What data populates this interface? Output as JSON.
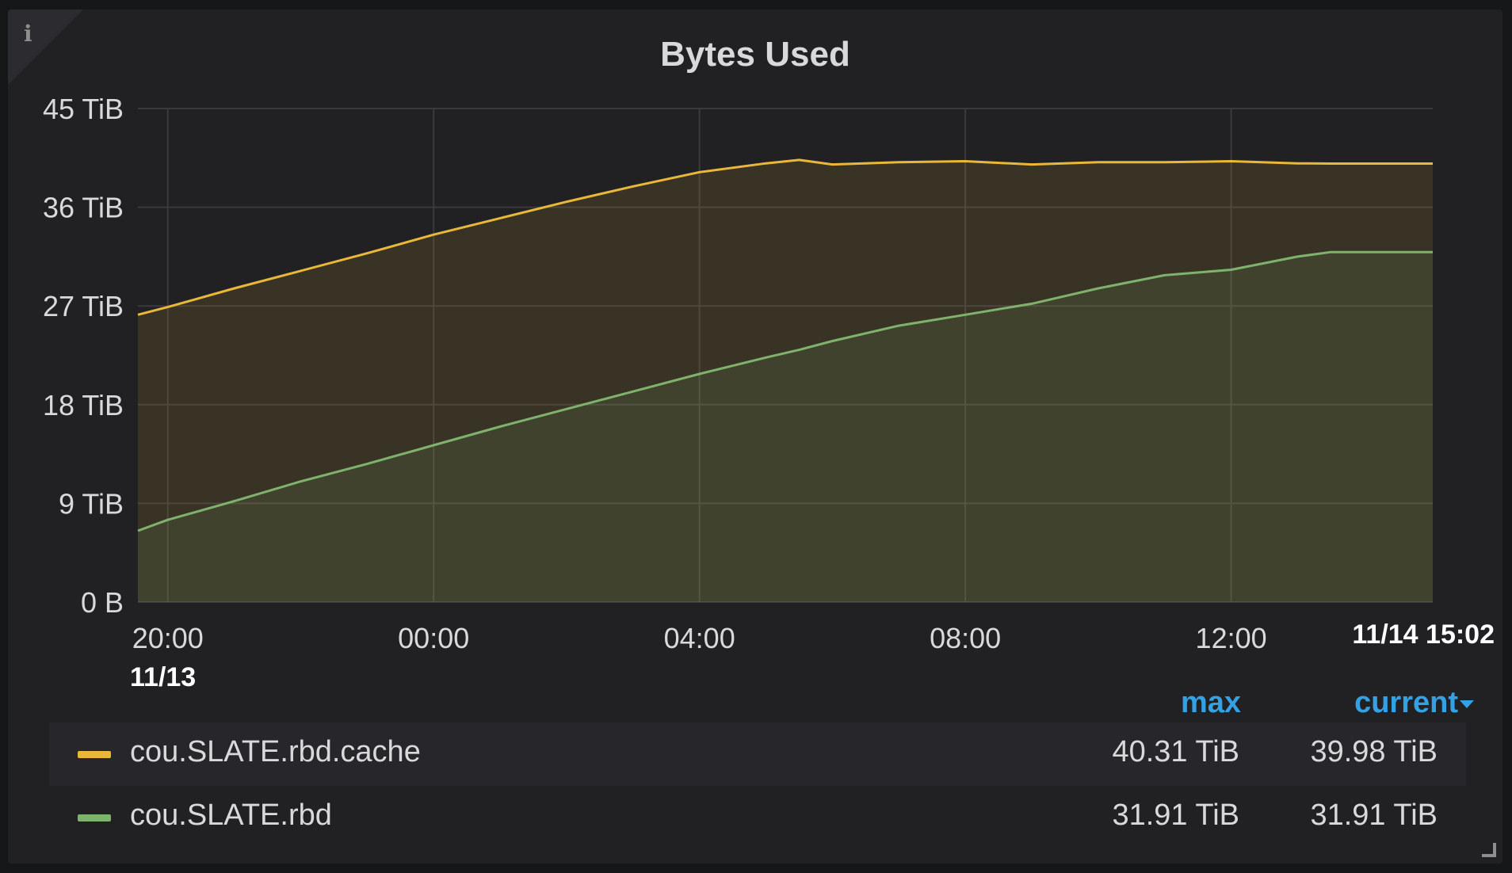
{
  "panel": {
    "title": "Bytes Used",
    "info_icon": "info-icon"
  },
  "chart_data": {
    "type": "area",
    "title": "Bytes Used",
    "ylabel": "",
    "xlabel": "",
    "y_unit": "TiB",
    "ylim": [
      0,
      45
    ],
    "y_ticks": [
      "0 B",
      "9 TiB",
      "18 TiB",
      "27 TiB",
      "36 TiB",
      "45 TiB"
    ],
    "x_ticks": [
      "20:00",
      "00:00",
      "04:00",
      "08:00",
      "12:00"
    ],
    "x_range": [
      "11/13 19:33",
      "11/14 15:02"
    ],
    "x_start_label": "11/13",
    "x_end_label": "11/14 15:02",
    "grid": true,
    "legend_position": "bottom",
    "x": [
      "11/13 19:33",
      "11/13 20:00",
      "11/13 21:00",
      "11/13 22:00",
      "11/13 23:00",
      "11/14 00:00",
      "11/14 01:00",
      "11/14 02:00",
      "11/14 03:00",
      "11/14 04:00",
      "11/14 05:00",
      "11/14 05:30",
      "11/14 06:00",
      "11/14 07:00",
      "11/14 08:00",
      "11/14 09:00",
      "11/14 10:00",
      "11/14 11:00",
      "11/14 12:00",
      "11/14 13:00",
      "11/14 13:30",
      "11/14 15:02"
    ],
    "series": [
      {
        "name": "cou.SLATE.rbd.cache",
        "color": "#eab839",
        "values": [
          26.2,
          26.9,
          28.6,
          30.2,
          31.8,
          33.5,
          35.0,
          36.5,
          37.9,
          39.2,
          40.0,
          40.31,
          39.9,
          40.1,
          40.2,
          39.9,
          40.1,
          40.1,
          40.2,
          40.0,
          39.98,
          39.98
        ]
      },
      {
        "name": "cou.SLATE.rbd",
        "color": "#7eb26d",
        "values": [
          6.5,
          7.5,
          9.2,
          11.0,
          12.6,
          14.3,
          16.0,
          17.6,
          19.2,
          20.8,
          22.3,
          23.0,
          23.8,
          25.2,
          26.2,
          27.2,
          28.6,
          29.8,
          30.3,
          31.5,
          31.91,
          31.91
        ]
      }
    ]
  },
  "legend": {
    "headers": {
      "max": "max",
      "current": "current"
    },
    "sort_icon": "caret-down-icon",
    "rows": [
      {
        "name": "cou.SLATE.rbd.cache",
        "max": "40.31 TiB",
        "current": "39.98 TiB",
        "color": "#eab839"
      },
      {
        "name": "cou.SLATE.rbd",
        "max": "31.91 TiB",
        "current": "31.91 TiB",
        "color": "#7eb26d"
      }
    ]
  }
}
